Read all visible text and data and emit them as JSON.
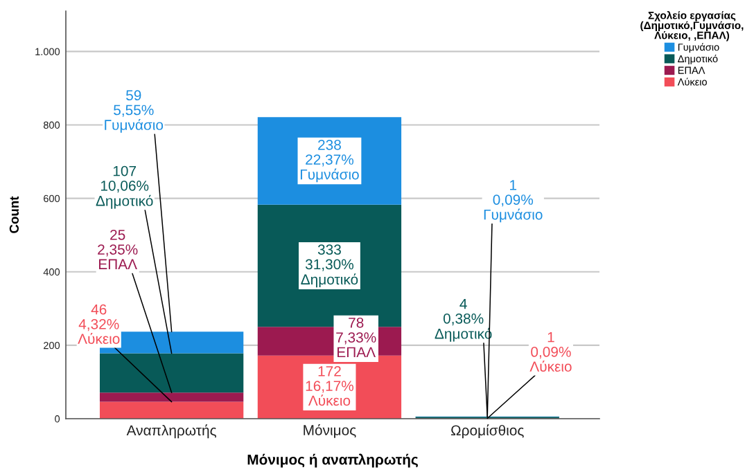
{
  "chart_data": {
    "type": "bar",
    "stacked": true,
    "categories": [
      "Αναπληρωτής",
      "Μόνιμος",
      "Ωρομίσθιος"
    ],
    "xlabel": "Μόνιμος ή αναπληρωτής",
    "ylabel": "Count",
    "legend_title": "Σχολείο εργασίας\n(Δημοτικό,Γυμνάσιο,\nΛύκειο, ,ΕΠΑΛ)",
    "series": [
      {
        "name": "Λύκειο",
        "color": "#f24d58",
        "values": [
          46,
          172,
          1
        ],
        "value_labels": [
          "46\n4,32%\nΛύκειο",
          "172\n16,17%\nΛύκειο",
          "1\n0,09%\nΛύκειο"
        ]
      },
      {
        "name": "ΕΠΑΛ",
        "color": "#9c1a50",
        "values": [
          25,
          78,
          null
        ],
        "value_labels": [
          "25\n2,35%\nΕΠΑΛ",
          "78\n7,33%\nΕΠΑΛ",
          null
        ]
      },
      {
        "name": "Δημοτικό",
        "color": "#085a58",
        "values": [
          107,
          333,
          4
        ],
        "value_labels": [
          "107\n10,06%\nΔημοτικό",
          "333\n31,30%\nΔημοτικό",
          "4\n0,38%\nΔημοτικό"
        ]
      },
      {
        "name": "Γυμνάσιο",
        "color": "#1c8ee0",
        "values": [
          59,
          238,
          1
        ],
        "value_labels": [
          "59\n5,55%\nΓυμνάσιο",
          "238\n22,37%\nΓυμνάσιο",
          "1\n0,09%\nΓυμνάσιο"
        ]
      }
    ],
    "ylim": [
      0,
      1110
    ],
    "yticks": [
      0,
      200,
      400,
      600,
      800,
      {
        "value": 1000,
        "label": "1.000"
      }
    ],
    "grid": "y",
    "legend": "top right"
  }
}
